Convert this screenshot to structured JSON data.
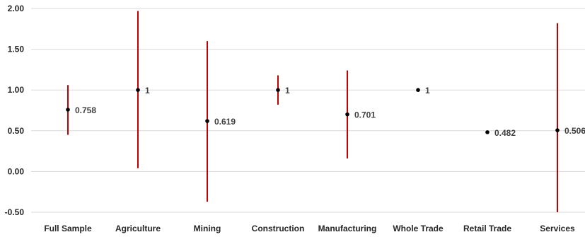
{
  "chart_data": {
    "type": "scatter",
    "title": "",
    "xlabel": "",
    "ylabel": "",
    "categories": [
      "Full Sample",
      "Agriculture",
      "Mining",
      "Construction",
      "Manufacturing",
      "Whole Trade",
      "Retail Trade",
      "Services"
    ],
    "values": [
      0.758,
      1,
      0.619,
      1,
      0.701,
      1,
      0.482,
      0.506
    ],
    "value_labels": [
      "0.758",
      "1",
      "0.619",
      "1",
      "0.701",
      "1",
      "0.482",
      "0.506"
    ],
    "error_low": [
      0.45,
      0.04,
      -0.37,
      0.82,
      0.16,
      1.0,
      0.482,
      -0.5
    ],
    "error_high": [
      1.06,
      1.97,
      1.6,
      1.18,
      1.24,
      1.0,
      0.482,
      1.82
    ],
    "ylim": [
      -0.5,
      2.0
    ],
    "y_ticks": [
      2.0,
      1.5,
      1.0,
      0.5,
      0.0,
      -0.5
    ],
    "y_tick_labels": [
      "2.00",
      "1.50",
      "1.00",
      "0.50",
      "0.00",
      "-0.50"
    ],
    "grid": true,
    "colors": {
      "point": "#000000",
      "error_bar": "#c00000",
      "grid": "#d9d9d9"
    }
  }
}
